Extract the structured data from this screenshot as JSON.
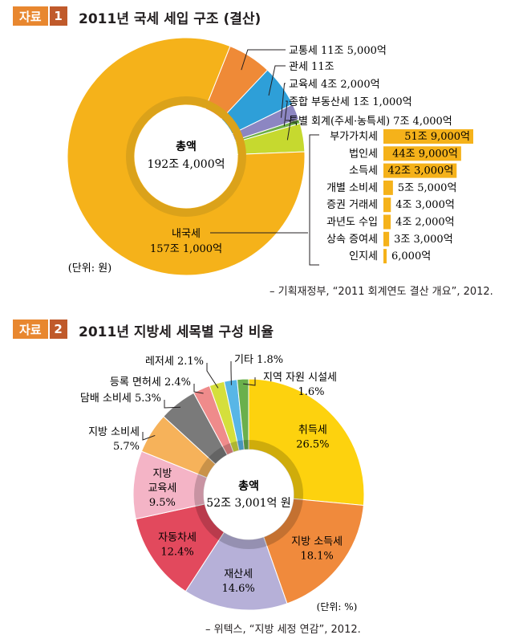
{
  "section1": {
    "tag_word": "자료",
    "tag_num": "1",
    "title": "2011년 국세 세입 구조 (결산)",
    "center_label": "총액",
    "center_value": "192조 4,000억",
    "unit": "(단위: 원)",
    "source": "– 기획재정부, “2011 회계연도 결산 개요”, 2012."
  },
  "section2": {
    "tag_word": "자료",
    "tag_num": "2",
    "title": "2011년 지방세 세목별 구성 비율",
    "center_label": "총액",
    "center_value": "52조 3,001억 원",
    "unit": "(단위: %)",
    "source": "– 위텍스, “지방 세정 연감”, 2012."
  },
  "chart_data": [
    {
      "type": "pie",
      "title": "2011년 국세 세입 구조 (결산)",
      "unit": "원",
      "slices": [
        {
          "label": "내국세",
          "value_text": "157조 1,000억",
          "value": 157.1,
          "color": "#f5b21a"
        },
        {
          "label": "교통세",
          "value_text": "11조 5,000억",
          "value": 11.5,
          "color": "#ef8a37"
        },
        {
          "label": "관세",
          "value_text": "11조",
          "value": 11.0,
          "color": "#2e9fd8"
        },
        {
          "label": "교육세",
          "value_text": "4조 2,000억",
          "value": 4.2,
          "color": "#8c86c2"
        },
        {
          "label": "종합 부동산세",
          "value_text": "1조 1,000억",
          "value": 1.1,
          "color": "#6cae46"
        },
        {
          "label": "특별 회계(주세·농특세)",
          "value_text": "7조 4,000억",
          "value": 7.4,
          "color": "#c6d92f"
        }
      ],
      "breakdown": {
        "parent": "내국세",
        "items": [
          {
            "label": "부가가치세",
            "value_text": "51조 9,000억",
            "value": 51.9
          },
          {
            "label": "법인세",
            "value_text": "44조 9,000억",
            "value": 44.9
          },
          {
            "label": "소득세",
            "value_text": "42조 3,000억",
            "value": 42.3
          },
          {
            "label": "개별 소비세",
            "value_text": "5조 5,000억",
            "value": 5.5
          },
          {
            "label": "증권 거래세",
            "value_text": "4조 3,000억",
            "value": 4.3
          },
          {
            "label": "과년도 수입",
            "value_text": "4조 2,000억",
            "value": 4.2
          },
          {
            "label": "상속 증여세",
            "value_text": "3조 3,000억",
            "value": 3.3
          },
          {
            "label": "인지세",
            "value_text": "6,000억",
            "value": 0.6
          }
        ],
        "bar_color": "#f5b21a"
      }
    },
    {
      "type": "pie",
      "title": "2011년 지방세 세목별 구성 비율",
      "unit": "%",
      "slices": [
        {
          "label": "취득세",
          "value_text": "26.5%",
          "value": 26.5,
          "color": "#fdd20e"
        },
        {
          "label": "지방 소득세",
          "value_text": "18.1%",
          "value": 18.1,
          "color": "#f08a3c"
        },
        {
          "label": "재산세",
          "value_text": "14.6%",
          "value": 14.6,
          "color": "#b6b0d8"
        },
        {
          "label": "자동차세",
          "value_text": "12.4%",
          "value": 12.4,
          "color": "#e2495d"
        },
        {
          "label": "지방 교육세",
          "value_text": "9.5%",
          "value": 9.5,
          "color": "#f4b4c6"
        },
        {
          "label": "지방 소비세",
          "value_text": "5.7%",
          "value": 5.7,
          "color": "#f6b25a"
        },
        {
          "label": "담배 소비세",
          "value_text": "5.3%",
          "value": 5.3,
          "color": "#7a7a7a"
        },
        {
          "label": "등록 면허세",
          "value_text": "2.4%",
          "value": 2.4,
          "color": "#ef8b8b"
        },
        {
          "label": "레저세",
          "value_text": "2.1%",
          "value": 2.1,
          "color": "#d5df3c"
        },
        {
          "label": "기타",
          "value_text": "1.8%",
          "value": 1.8,
          "color": "#58b6e6"
        },
        {
          "label": "지역 자원 시설세",
          "value_text": "1.6%",
          "value": 1.6,
          "color": "#6ab04c"
        }
      ]
    }
  ]
}
